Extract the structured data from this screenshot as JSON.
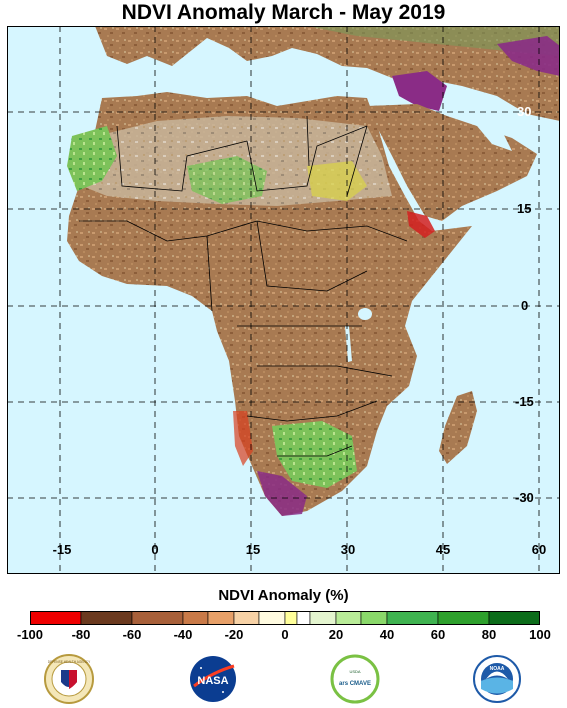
{
  "title": "NDVI Anomaly March - May 2019",
  "map": {
    "lon_labels": [
      "-15",
      "0",
      "15",
      "30",
      "45",
      "60"
    ],
    "lat_labels": [
      "30",
      "15",
      "0",
      "-15",
      "-30"
    ],
    "ocean_color": "#d6f6ff",
    "land_color": "#a5744a"
  },
  "legend": {
    "title": "NDVI Anomaly (%)",
    "ticks": [
      "-100",
      "-80",
      "-60",
      "-40",
      "-20",
      "0",
      "20",
      "40",
      "60",
      "80",
      "100"
    ],
    "colors": [
      "#ef0000",
      "#6b3a1f",
      "#a8603a",
      "#c97a48",
      "#e7a068",
      "#f7d2a6",
      "#fffbe0",
      "#ffff9a",
      "#ffffff",
      "#e4f5cf",
      "#b9ec98",
      "#8ad86a",
      "#3fb350",
      "#2ea02c",
      "#0c6c1a",
      "#8a2c86"
    ]
  },
  "logos": [
    {
      "name": "defense-health-agency-logo",
      "text": "DEFENSE HEALTH AGENCY"
    },
    {
      "name": "nasa-logo",
      "text": "NASA"
    },
    {
      "name": "usda-ars-cmave-logo",
      "text": "ars CMAVE",
      "subtext": "USDA"
    },
    {
      "name": "noaa-logo",
      "text": "NOAA"
    }
  ]
}
